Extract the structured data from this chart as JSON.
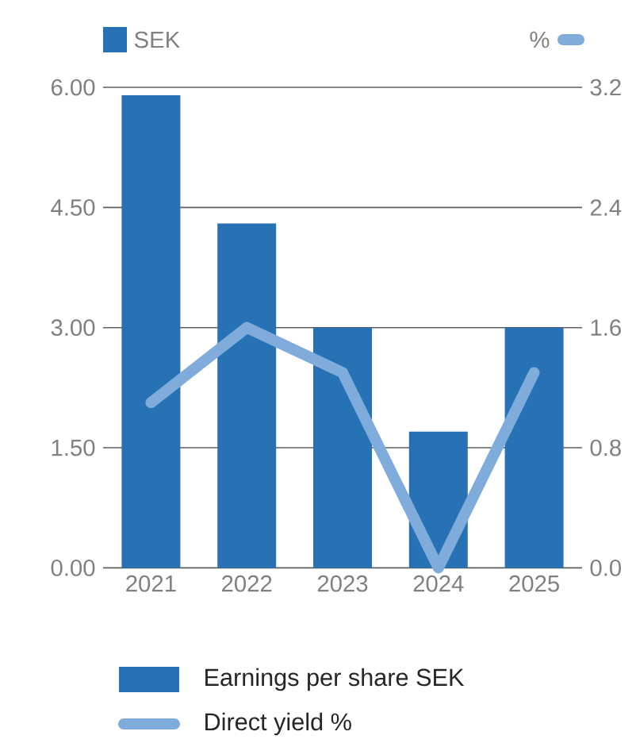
{
  "chart_data": {
    "type": "bar",
    "ylabel": "SEK",
    "y2label": "%",
    "categories": [
      "2021",
      "2022",
      "2023",
      "2024",
      "2025"
    ],
    "series": [
      {
        "name": "Earnings per share SEK",
        "color": "#2672b4",
        "values": [
          5.9,
          4.3,
          3.0,
          1.7,
          3.0
        ]
      },
      {
        "name": "Direct yield %",
        "type": "line",
        "axis": "y2",
        "color": "#80acdb",
        "values": [
          1.1,
          1.6,
          1.3,
          0.0,
          1.3
        ]
      }
    ],
    "ylim": [
      0,
      6
    ],
    "yticks": [
      {
        "value": 0,
        "label": "0.00"
      },
      {
        "value": 1.5,
        "label": "1.50"
      },
      {
        "value": 3,
        "label": "3.00"
      },
      {
        "value": 4.5,
        "label": "4.50"
      },
      {
        "value": 6,
        "label": "6.00"
      }
    ],
    "y2lim": [
      0,
      3.2
    ],
    "y2ticks": [
      {
        "value": 0,
        "label": "0.0"
      },
      {
        "value": 0.8,
        "label": "0.8"
      },
      {
        "value": 1.6,
        "label": "1.6"
      },
      {
        "value": 2.4,
        "label": "2.4"
      },
      {
        "value": 3.2,
        "label": "3.2"
      }
    ],
    "grid": "y",
    "legend": "bottom",
    "marker": "none",
    "line_style": "solid"
  }
}
